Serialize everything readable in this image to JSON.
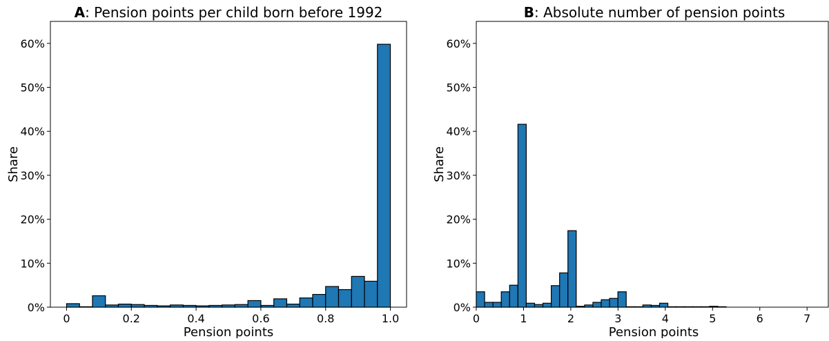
{
  "chart_data": [
    {
      "type": "bar",
      "title_bold": "A",
      "title_rest": ": Pension points per child born before 1992",
      "xlabel": "Pension points",
      "ylabel": "Share",
      "xlim": [
        -0.05,
        1.05
      ],
      "ylim": [
        0,
        65
      ],
      "xticks": [
        0,
        0.2,
        0.4,
        0.6,
        0.8,
        1.0
      ],
      "xtick_labels": [
        "0",
        "0.2",
        "0.4",
        "0.6",
        "0.8",
        "1.0"
      ],
      "yticks": [
        0,
        10,
        20,
        30,
        40,
        50,
        60
      ],
      "ytick_labels": [
        "0%",
        "10%",
        "20%",
        "30%",
        "40%",
        "50%",
        "60%"
      ],
      "bin_width": 0.04,
      "bins_start": [
        0,
        0.04,
        0.08,
        0.12,
        0.16,
        0.2,
        0.24,
        0.28,
        0.32,
        0.36,
        0.4,
        0.44,
        0.48,
        0.52,
        0.56,
        0.6,
        0.64,
        0.68,
        0.72,
        0.76,
        0.8,
        0.84,
        0.88,
        0.92,
        0.96
      ],
      "values": [
        0.8,
        0.1,
        2.6,
        0.5,
        0.7,
        0.6,
        0.4,
        0.3,
        0.5,
        0.4,
        0.3,
        0.4,
        0.5,
        0.6,
        1.5,
        0.4,
        1.9,
        0.7,
        2.1,
        2.9,
        4.7,
        4.0,
        7.0,
        5.9,
        59.8
      ],
      "color": "#1f77b4",
      "grid": false
    },
    {
      "type": "bar",
      "title_bold": "B",
      "title_rest": ": Absolute number of pension points",
      "xlabel": "Pension points",
      "ylabel": "Share",
      "xlim": [
        0,
        7.45
      ],
      "ylim": [
        0,
        65
      ],
      "xticks": [
        0,
        1,
        2,
        3,
        4,
        5,
        6,
        7
      ],
      "xtick_labels": [
        "0",
        "1",
        "2",
        "3",
        "4",
        "5",
        "6",
        "7"
      ],
      "yticks": [
        0,
        10,
        20,
        30,
        40,
        50,
        60
      ],
      "ytick_labels": [
        "0%",
        "10%",
        "20%",
        "30%",
        "40%",
        "50%",
        "60%"
      ],
      "bin_width": 0.1763,
      "bins_start": [
        0,
        0.1763,
        0.3526,
        0.5289,
        0.7052,
        0.8815,
        1.0578,
        1.2341,
        1.4104,
        1.5867,
        1.763,
        1.9393,
        2.1156,
        2.2919,
        2.4682,
        2.6445,
        2.8208,
        2.9971,
        3.1734,
        3.3497,
        3.526,
        3.7023,
        3.8786,
        4.0549,
        4.2312,
        4.4075,
        4.5838,
        4.7601,
        4.9364,
        5.1127
      ],
      "values": [
        3.5,
        1.1,
        1.1,
        3.5,
        5.0,
        41.6,
        0.9,
        0.6,
        0.9,
        4.9,
        7.8,
        17.4,
        0.2,
        0.5,
        1.1,
        1.7,
        2.0,
        3.5,
        0.1,
        0.1,
        0.5,
        0.4,
        0.9,
        0.1,
        0.1,
        0.1,
        0.1,
        0.1,
        0.2,
        0.1
      ],
      "color": "#1f77b4",
      "grid": false
    }
  ]
}
